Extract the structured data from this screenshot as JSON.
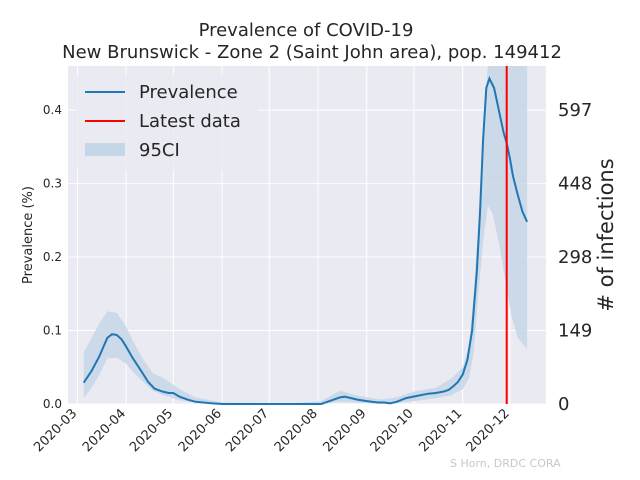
{
  "chart_data": {
    "type": "line",
    "title": "Prevalence of COVID-19",
    "subtitle": "New Brunswick - Zone 2 (Saint John area), pop. 149412",
    "ylabel": "Prevalence (%)",
    "y2label": "# of infections",
    "credit": "S Horn, DRDC CORA",
    "xlim": [
      "2020-02-24",
      "2020-12-24"
    ],
    "ylim": [
      0,
      0.46
    ],
    "yticks": [
      "0.0",
      "0.1",
      "0.2",
      "0.3",
      "0.4"
    ],
    "yticks_right": [
      "0",
      "149",
      "298",
      "448",
      "597"
    ],
    "xticks": [
      "2020-03",
      "2020-04",
      "2020-05",
      "2020-06",
      "2020-07",
      "2020-08",
      "2020-09",
      "2020-10",
      "2020-11",
      "2020-12"
    ],
    "grid": true,
    "legend_placement": "top-left",
    "legend": [
      "Prevalence",
      "Latest data",
      "95CI"
    ],
    "colors": {
      "prevalence": "#1f77b4",
      "latest": "#ff0000",
      "ci": "#c5d6e8",
      "background": "#eaeaf2",
      "grid": "#ffffff"
    },
    "latest_data_date": "2020-11-29",
    "series": [
      {
        "name": "Prevalence",
        "x": [
          "2020-03-05",
          "2020-03-10",
          "2020-03-15",
          "2020-03-20",
          "2020-03-23",
          "2020-03-26",
          "2020-03-29",
          "2020-04-01",
          "2020-04-05",
          "2020-04-09",
          "2020-04-12",
          "2020-04-15",
          "2020-04-19",
          "2020-04-24",
          "2020-04-28",
          "2020-05-01",
          "2020-05-05",
          "2020-05-10",
          "2020-05-15",
          "2020-05-20",
          "2020-05-25",
          "2020-06-01",
          "2020-06-15",
          "2020-07-01",
          "2020-07-15",
          "2020-07-25",
          "2020-08-03",
          "2020-08-07",
          "2020-08-11",
          "2020-08-15",
          "2020-08-18",
          "2020-08-22",
          "2020-08-26",
          "2020-09-01",
          "2020-09-08",
          "2020-09-12",
          "2020-09-16",
          "2020-09-20",
          "2020-09-26",
          "2020-10-03",
          "2020-10-10",
          "2020-10-15",
          "2020-10-20",
          "2020-10-23",
          "2020-10-26",
          "2020-10-29",
          "2020-11-01",
          "2020-11-04",
          "2020-11-07",
          "2020-11-10",
          "2020-11-12",
          "2020-11-14",
          "2020-11-16",
          "2020-11-18",
          "2020-11-21",
          "2020-11-24",
          "2020-11-27",
          "2020-11-29",
          "2020-12-01",
          "2020-12-03",
          "2020-12-06",
          "2020-12-09",
          "2020-12-12"
        ],
        "values": [
          0.029,
          0.045,
          0.065,
          0.09,
          0.095,
          0.094,
          0.088,
          0.078,
          0.063,
          0.05,
          0.04,
          0.03,
          0.021,
          0.017,
          0.015,
          0.015,
          0.01,
          0.006,
          0.003,
          0.002,
          0.001,
          0.0,
          0.0,
          0.0,
          0.0,
          0.0,
          0.0,
          0.003,
          0.006,
          0.009,
          0.01,
          0.008,
          0.006,
          0.004,
          0.002,
          0.002,
          0.001,
          0.003,
          0.008,
          0.011,
          0.014,
          0.015,
          0.017,
          0.019,
          0.024,
          0.03,
          0.04,
          0.06,
          0.1,
          0.18,
          0.26,
          0.36,
          0.43,
          0.443,
          0.43,
          0.4,
          0.37,
          0.355,
          0.335,
          0.31,
          0.285,
          0.262,
          0.248
        ]
      },
      {
        "name": "95CI",
        "x": [
          "2020-03-05",
          "2020-03-10",
          "2020-03-15",
          "2020-03-20",
          "2020-03-26",
          "2020-04-01",
          "2020-04-06",
          "2020-04-12",
          "2020-04-18",
          "2020-04-25",
          "2020-05-05",
          "2020-05-15",
          "2020-06-01",
          "2020-07-15",
          "2020-08-03",
          "2020-08-15",
          "2020-08-25",
          "2020-09-10",
          "2020-09-20",
          "2020-10-01",
          "2020-10-15",
          "2020-10-25",
          "2020-11-01",
          "2020-11-05",
          "2020-11-08",
          "2020-11-11",
          "2020-11-14",
          "2020-11-17",
          "2020-11-20",
          "2020-11-24",
          "2020-11-28",
          "2020-12-02",
          "2020-12-06",
          "2020-12-12"
        ],
        "upper": [
          0.07,
          0.09,
          0.11,
          0.126,
          0.124,
          0.105,
          0.083,
          0.06,
          0.042,
          0.035,
          0.02,
          0.009,
          0.002,
          0.001,
          0.004,
          0.018,
          0.012,
          0.006,
          0.009,
          0.017,
          0.022,
          0.035,
          0.05,
          0.08,
          0.15,
          0.25,
          0.37,
          0.46,
          0.46,
          0.46,
          0.46,
          0.46,
          0.46,
          0.46
        ],
        "lower": [
          0.008,
          0.022,
          0.04,
          0.062,
          0.063,
          0.055,
          0.042,
          0.03,
          0.018,
          0.012,
          0.005,
          0.002,
          0.0,
          0.0,
          0.0,
          0.003,
          0.002,
          0.0,
          0.001,
          0.004,
          0.008,
          0.012,
          0.02,
          0.035,
          0.07,
          0.15,
          0.22,
          0.27,
          0.26,
          0.22,
          0.17,
          0.12,
          0.09,
          0.075
        ]
      }
    ]
  }
}
